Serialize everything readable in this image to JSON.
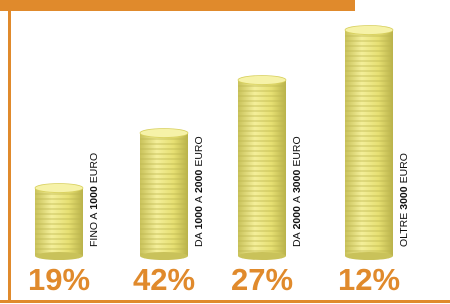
{
  "items": [
    {
      "label": [
        "FINO A",
        "1000",
        "EURO"
      ],
      "percent": "19%"
    },
    {
      "label": [
        "DA",
        "1000",
        "A",
        "2000",
        "EURO"
      ],
      "percent": "42%"
    },
    {
      "label": [
        "DA",
        "2000",
        "A",
        "3000",
        "EURO"
      ],
      "percent": "27%"
    },
    {
      "label": [
        "OLTRE",
        "3000",
        "EURO"
      ],
      "percent": "12%"
    }
  ]
}
